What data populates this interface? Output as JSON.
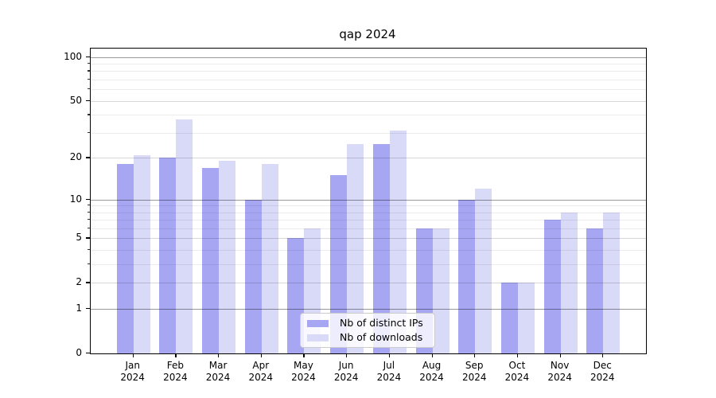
{
  "chart_data": {
    "type": "bar",
    "title": "qap 2024",
    "categories": [
      "Jan",
      "Feb",
      "Mar",
      "Apr",
      "May",
      "Jun",
      "Jul",
      "Aug",
      "Sep",
      "Oct",
      "Nov",
      "Dec"
    ],
    "x_year_label": "2024",
    "series": [
      {
        "name": "Nb of distinct IPs",
        "color": "#a6a6f2",
        "values": [
          18,
          20,
          17,
          10,
          5,
          15,
          25,
          6,
          10,
          2,
          7,
          6
        ]
      },
      {
        "name": "Nb of downloads",
        "color": "#d9d9f8",
        "values": [
          21,
          37,
          19,
          18,
          6,
          25,
          31,
          6,
          12,
          2,
          8,
          8
        ]
      }
    ],
    "y_axis": {
      "scale": "log10(value+1)",
      "tick_labels": [
        "0",
        "1",
        "2",
        "5",
        "10",
        "20",
        "50",
        "100"
      ],
      "ticks": [
        0,
        1,
        2,
        5,
        10,
        20,
        50,
        100
      ],
      "minor_gridlines": [
        3,
        4,
        6,
        7,
        8,
        9,
        30,
        40,
        60,
        70,
        80,
        90
      ],
      "decade_gridlines": [
        1,
        10,
        100
      ],
      "ylim": [
        0,
        115
      ],
      "grid": true
    },
    "legend": {
      "position": "lower-center",
      "entries": [
        "Nb of distinct IPs",
        "Nb of downloads"
      ]
    }
  },
  "colors": {
    "background": "#ffffff",
    "bar_distinct_ips": "#a6a6f2",
    "bar_downloads": "#d9d9f8",
    "axis": "#000000",
    "legend_border": "#cccccc"
  }
}
